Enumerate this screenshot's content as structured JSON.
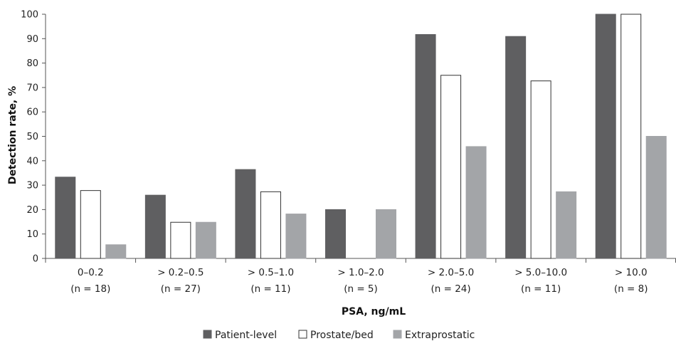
{
  "chart_data": {
    "type": "bar",
    "xlabel": "PSA, ng/mL",
    "ylabel": "Detection rate, %",
    "ylim": [
      0,
      100
    ],
    "yticks": [
      0,
      10,
      20,
      30,
      40,
      50,
      60,
      70,
      80,
      90,
      100
    ],
    "categories": [
      {
        "label": "0–0.2",
        "n": "(n = 18)"
      },
      {
        "label": "> 0.2–0.5",
        "n": "(n = 27)"
      },
      {
        "label": "> 0.5–1.0",
        "n": "(n = 11)"
      },
      {
        "label": "> 1.0–2.0",
        "n": "(n = 5)"
      },
      {
        "label": "> 2.0–5.0",
        "n": "(n = 24)"
      },
      {
        "label": "> 5.0–10.0",
        "n": "(n = 11)"
      },
      {
        "label": "> 10.0",
        "n": "(n = 8)"
      }
    ],
    "series": [
      {
        "name": "Patient-level",
        "color": "#5f5f61",
        "stroke": "#5f5f61",
        "values": [
          33.3,
          25.9,
          36.4,
          20.0,
          91.7,
          90.9,
          100
        ]
      },
      {
        "name": "Prostate/bed",
        "color": "#ffffff",
        "stroke": "#333333",
        "values": [
          27.8,
          14.8,
          27.3,
          0,
          75.0,
          72.7,
          100
        ]
      },
      {
        "name": "Extraprostatic",
        "color": "#a3a5a8",
        "stroke": "#a3a5a8",
        "values": [
          5.6,
          14.8,
          18.2,
          20.0,
          45.8,
          27.3,
          50.0
        ]
      }
    ],
    "grid": false,
    "legend_position": "bottom-center"
  }
}
